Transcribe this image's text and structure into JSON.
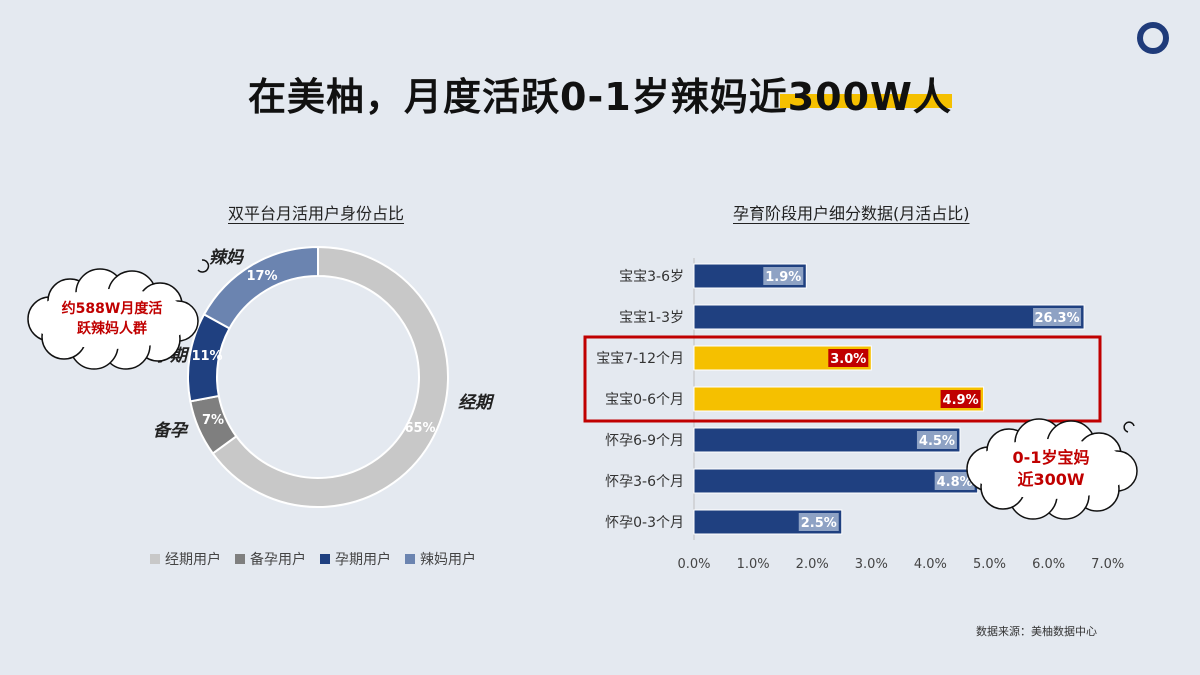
{
  "title": "在美柚，月度活跃0-1岁辣妈近300W人",
  "source": "数据来源：美柚数据中心",
  "colors": {
    "background": "#e4e9f0",
    "accent_yellow": "#f5c000",
    "navy": "#1f4080",
    "red": "#c00000"
  },
  "chart_data": [
    {
      "type": "pie",
      "subtitle": "双平台月活用户身份占比",
      "slices": [
        {
          "label": "经期",
          "legend": "经期用户",
          "value": 65,
          "value_label": "65%",
          "color": "#c8c8c8"
        },
        {
          "label": "备孕",
          "legend": "备孕用户",
          "value": 7,
          "value_label": "7%",
          "color": "#7f7f7f"
        },
        {
          "label": "孕期",
          "legend": "孕期用户",
          "value": 11,
          "value_label": "11%",
          "color": "#1f4080"
        },
        {
          "label": "辣妈",
          "legend": "辣妈用户",
          "value": 17,
          "value_label": "17%",
          "color": "#6b84b0"
        }
      ],
      "callout": [
        "约588W月度活",
        "跃辣妈人群"
      ]
    },
    {
      "type": "bar",
      "orientation": "horizontal",
      "subtitle": "孕育阶段用户细分数据(月活占比)",
      "categories": [
        "宝宝3-6岁",
        "宝宝1-3岁",
        "宝宝7-12个月",
        "宝宝0-6个月",
        "怀孕6-9个月",
        "怀孕3-6个月",
        "怀孕0-3个月"
      ],
      "values": [
        1.9,
        26.3,
        3.0,
        4.9,
        4.5,
        4.8,
        2.5
      ],
      "value_labels": [
        "1.9%",
        "26.3%",
        "3.0%",
        "4.9%",
        "4.5%",
        "4.8%",
        "2.5%"
      ],
      "bar_display_values": [
        1.9,
        6.6,
        3.0,
        4.9,
        4.5,
        4.8,
        2.5
      ],
      "highlighted": [
        false,
        false,
        true,
        true,
        false,
        false,
        false
      ],
      "xlim": [
        0,
        7
      ],
      "xticks": [
        "0.0%",
        "1.0%",
        "2.0%",
        "3.0%",
        "4.0%",
        "5.0%",
        "6.0%",
        "7.0%"
      ],
      "callout": [
        "0-1岁宝妈",
        "近300W"
      ]
    }
  ]
}
